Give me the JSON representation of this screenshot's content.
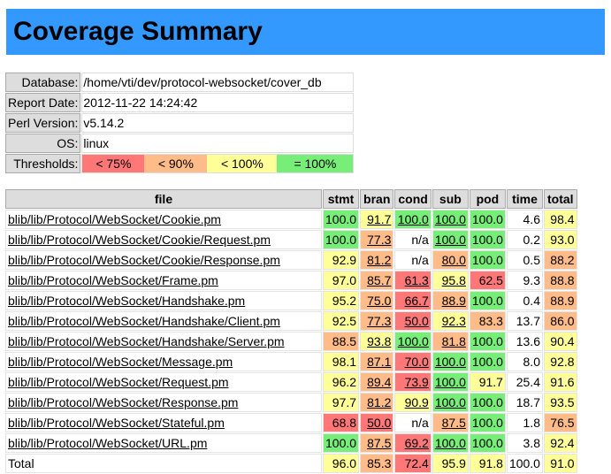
{
  "title": "Coverage Summary",
  "info": [
    {
      "key": "Database:",
      "value": "/home/vti/dev/protocol-websocket/cover_db"
    },
    {
      "key": "Report Date:",
      "value": "2012-11-22 14:24:42"
    },
    {
      "key": "Perl Version:",
      "value": "v5.14.2"
    },
    {
      "key": "OS:",
      "value": "linux"
    }
  ],
  "thresholds": {
    "label": "Thresholds:",
    "levels": [
      {
        "text": "< 75%",
        "color": "#ff7777"
      },
      {
        "text": "< 90%",
        "color": "#ffbb88"
      },
      {
        "text": "< 100%",
        "color": "#ffff99"
      },
      {
        "text": "= 100%",
        "color": "#77ee77"
      }
    ]
  },
  "table": {
    "headers": [
      "file",
      "stmt",
      "bran",
      "cond",
      "sub",
      "pod",
      "time",
      "total"
    ],
    "rows": [
      {
        "file": "blib/lib/Protocol/WebSocket/Cookie.pm",
        "stmt": "100.0",
        "bran": "91.7",
        "cond": "100.0",
        "sub": "100.0",
        "pod": "100.0",
        "time": "4.6",
        "total": "98.4"
      },
      {
        "file": "blib/lib/Protocol/WebSocket/Cookie/Request.pm",
        "stmt": "100.0",
        "bran": "77.3",
        "cond": "n/a",
        "sub": "100.0",
        "pod": "100.0",
        "time": "0.2",
        "total": "93.0"
      },
      {
        "file": "blib/lib/Protocol/WebSocket/Cookie/Response.pm",
        "stmt": "92.9",
        "bran": "81.2",
        "cond": "n/a",
        "sub": "80.0",
        "pod": "100.0",
        "time": "0.5",
        "total": "88.2"
      },
      {
        "file": "blib/lib/Protocol/WebSocket/Frame.pm",
        "stmt": "97.0",
        "bran": "85.7",
        "cond": "61.3",
        "sub": "95.8",
        "pod": "62.5",
        "time": "9.3",
        "total": "88.8"
      },
      {
        "file": "blib/lib/Protocol/WebSocket/Handshake.pm",
        "stmt": "95.2",
        "bran": "75.0",
        "cond": "66.7",
        "sub": "88.9",
        "pod": "100.0",
        "time": "0.4",
        "total": "88.9"
      },
      {
        "file": "blib/lib/Protocol/WebSocket/Handshake/Client.pm",
        "stmt": "92.5",
        "bran": "77.3",
        "cond": "50.0",
        "sub": "92.3",
        "pod": "83.3",
        "time": "13.7",
        "total": "86.0"
      },
      {
        "file": "blib/lib/Protocol/WebSocket/Handshake/Server.pm",
        "stmt": "88.5",
        "bran": "93.8",
        "cond": "100.0",
        "sub": "81.8",
        "pod": "100.0",
        "time": "13.6",
        "total": "90.4"
      },
      {
        "file": "blib/lib/Protocol/WebSocket/Message.pm",
        "stmt": "98.1",
        "bran": "87.1",
        "cond": "70.0",
        "sub": "100.0",
        "pod": "100.0",
        "time": "8.0",
        "total": "92.8"
      },
      {
        "file": "blib/lib/Protocol/WebSocket/Request.pm",
        "stmt": "96.2",
        "bran": "89.4",
        "cond": "73.9",
        "sub": "100.0",
        "pod": "91.7",
        "time": "25.4",
        "total": "91.6"
      },
      {
        "file": "blib/lib/Protocol/WebSocket/Response.pm",
        "stmt": "97.7",
        "bran": "81.2",
        "cond": "90.9",
        "sub": "100.0",
        "pod": "100.0",
        "time": "18.7",
        "total": "93.5"
      },
      {
        "file": "blib/lib/Protocol/WebSocket/Stateful.pm",
        "stmt": "68.8",
        "bran": "50.0",
        "cond": "n/a",
        "sub": "87.5",
        "pod": "100.0",
        "time": "1.8",
        "total": "76.5"
      },
      {
        "file": "blib/lib/Protocol/WebSocket/URL.pm",
        "stmt": "100.0",
        "bran": "87.5",
        "cond": "69.2",
        "sub": "100.0",
        "pod": "100.0",
        "time": "3.8",
        "total": "92.4"
      }
    ],
    "total_row": {
      "file": "Total",
      "stmt": "96.0",
      "bran": "85.3",
      "cond": "72.4",
      "sub": "95.9",
      "pod": "91.8",
      "time": "100.0",
      "total": "91.0"
    }
  }
}
